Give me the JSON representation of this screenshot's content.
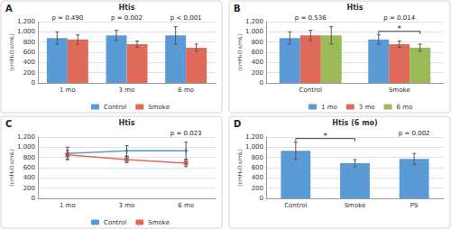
{
  "chart_data": [
    {
      "panel": "A",
      "type": "bar",
      "title": "Htis",
      "y_label": "(cmH₂O.s/mL)",
      "categories": [
        "1 mo",
        "3 mo",
        "6 mo"
      ],
      "series": [
        {
          "name": "Control",
          "color": "#5b9bd5",
          "values": [
            880,
            930,
            930
          ],
          "errors": [
            120,
            100,
            170
          ]
        },
        {
          "name": "Smoke",
          "color": "#e06a5a",
          "values": [
            850,
            760,
            690
          ],
          "errors": [
            90,
            60,
            70
          ]
        }
      ],
      "annotations": [
        {
          "category": "1 mo",
          "text": "p = 0.490"
        },
        {
          "category": "3 mo",
          "text": "p = 0.002"
        },
        {
          "category": "6 mo",
          "text": "p < 0,001"
        }
      ],
      "ylim": [
        0,
        1200
      ],
      "yticks": [
        0,
        200,
        400,
        600,
        800,
        {
          "value": 1000,
          "label": "1,000"
        },
        {
          "value": 1200,
          "label": "1,200"
        }
      ],
      "grid": true,
      "legend": "bottom"
    },
    {
      "panel": "B",
      "type": "bar",
      "title": "Htis",
      "y_label": "(cmH₂O.s/mL)",
      "categories": [
        "Control",
        "Smoke"
      ],
      "series": [
        {
          "name": "1 mo",
          "color": "#5b9bd5",
          "values": [
            880,
            850
          ],
          "errors": [
            120,
            90
          ]
        },
        {
          "name": "3 mo",
          "color": "#e06a5a",
          "values": [
            930,
            760
          ],
          "errors": [
            100,
            60
          ]
        },
        {
          "name": "6 mo",
          "color": "#9bbb59",
          "values": [
            930,
            690
          ],
          "errors": [
            170,
            70
          ]
        }
      ],
      "annotations": [
        {
          "category": "Control",
          "text": "p = 0.536"
        },
        {
          "category": "Smoke",
          "text": "p = 0.014"
        }
      ],
      "brackets": [
        {
          "category": "Smoke",
          "series": [
            "1 mo",
            "6 mo"
          ],
          "label": "*"
        }
      ],
      "ylim": [
        0,
        1200
      ],
      "yticks": [
        0,
        200,
        400,
        600,
        800,
        {
          "value": 1000,
          "label": "1,000"
        },
        {
          "value": 1200,
          "label": "1,200"
        }
      ],
      "grid": true,
      "legend": "bottom"
    },
    {
      "panel": "C",
      "type": "line",
      "title": "Htis",
      "y_label": "(cmH₂O.s/mL)",
      "categories": [
        "1 mo",
        "3 mo",
        "6 mo"
      ],
      "series": [
        {
          "name": "Control",
          "color": "#5b9bd5",
          "marker": "diamond",
          "values": [
            880,
            930,
            930
          ],
          "errors": [
            120,
            100,
            170
          ]
        },
        {
          "name": "Smoke",
          "color": "#e06a5a",
          "marker": "square",
          "values": [
            850,
            760,
            690
          ],
          "errors": [
            90,
            60,
            70
          ]
        }
      ],
      "annotations": [
        {
          "category": "6 mo",
          "text": "p = 0.023"
        }
      ],
      "ylim": [
        0,
        1200
      ],
      "yticks": [
        0,
        200,
        400,
        600,
        800,
        {
          "value": 1000,
          "label": "1,000"
        },
        {
          "value": 1200,
          "label": "1,200"
        }
      ],
      "grid": true,
      "legend": "bottom"
    },
    {
      "panel": "D",
      "type": "bar",
      "title": "Htis (6 mo)",
      "y_label": "(cmH₂O.s/mL)",
      "categories": [
        "Control",
        "Smoke",
        "PS"
      ],
      "values": [
        930,
        690,
        770
      ],
      "errors": [
        170,
        70,
        110
      ],
      "color": "#5b9bd5",
      "annotations": [
        {
          "category": "PS",
          "text": "p = 0.002"
        }
      ],
      "brackets": [
        {
          "categories": [
            "Control",
            "Smoke"
          ],
          "label": "*"
        }
      ],
      "ylim": [
        0,
        1200
      ],
      "yticks": [
        0,
        200,
        400,
        600,
        800,
        {
          "value": 1000,
          "label": "1,000"
        },
        {
          "value": 1200,
          "label": "1,200"
        }
      ],
      "grid": true
    }
  ]
}
